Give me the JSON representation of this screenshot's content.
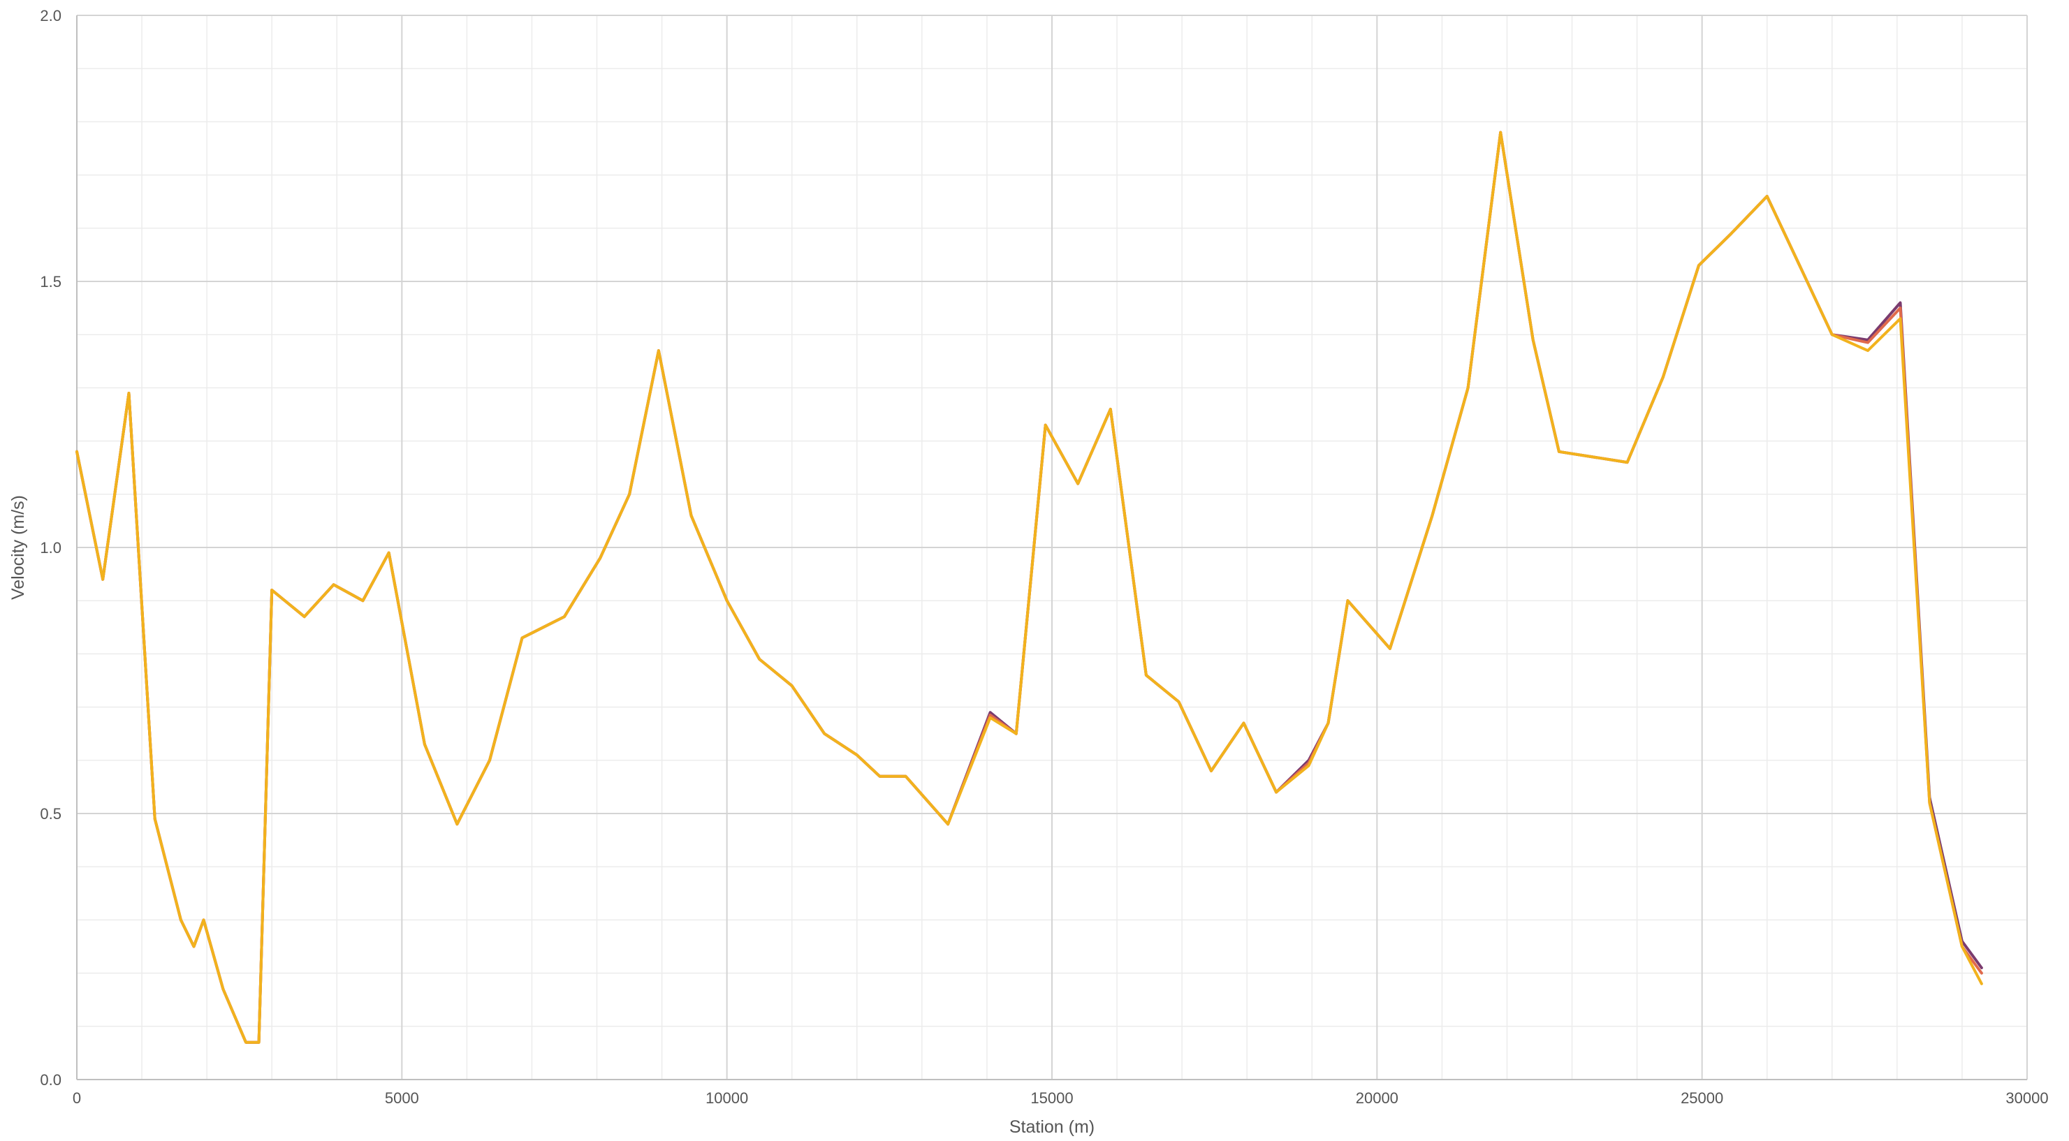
{
  "chart_data": {
    "type": "line",
    "title": "",
    "xlabel": "Station (m)",
    "ylabel": "Velocity (m/s)",
    "xlim": [
      0,
      30000
    ],
    "ylim": [
      0,
      2.0
    ],
    "x_ticks": [
      0,
      5000,
      10000,
      15000,
      20000,
      25000,
      30000
    ],
    "x_tick_labels": [
      "0",
      "5000",
      "10000",
      "15000",
      "20000",
      "25000",
      "30000"
    ],
    "y_ticks": [
      0,
      0.5,
      1.0,
      1.5,
      2.0
    ],
    "y_tick_labels": [
      "0.0",
      "0.5",
      "1.0",
      "1.5",
      "2.0"
    ],
    "x_minor_step": 1000,
    "y_minor_step": 0.1,
    "grid": true,
    "legend": "none",
    "colors": {
      "major_grid": "#d4d4d4",
      "minor_grid": "#ececec",
      "axis": "#bfbfbf"
    },
    "series": [
      {
        "color": "#7a3b6e",
        "x": [
          0,
          400,
          800,
          1200,
          1600,
          1800,
          1950,
          2250,
          2600,
          2800,
          3000,
          3500,
          3950,
          4400,
          4800,
          5350,
          5850,
          6350,
          6850,
          7500,
          8050,
          8500,
          8950,
          9450,
          10000,
          10500,
          11000,
          11500,
          12000,
          12350,
          12750,
          13400,
          14050,
          14450,
          14900,
          15400,
          15900,
          16450,
          16950,
          17450,
          17950,
          18450,
          18950,
          19250,
          19550,
          20200,
          20850,
          21400,
          21900,
          22400,
          22800,
          23850,
          24400,
          24950,
          25450,
          26000,
          26500,
          27000,
          27550,
          28050,
          28500,
          29000,
          29300
        ],
        "y": [
          1.18,
          0.94,
          1.29,
          0.49,
          0.3,
          0.25,
          0.3,
          0.17,
          0.07,
          0.07,
          0.92,
          0.87,
          0.93,
          0.9,
          0.99,
          0.63,
          0.48,
          0.6,
          0.83,
          0.87,
          0.98,
          1.1,
          1.37,
          1.06,
          0.9,
          0.79,
          0.74,
          0.65,
          0.61,
          0.57,
          0.57,
          0.48,
          0.69,
          0.65,
          1.23,
          1.12,
          1.26,
          0.76,
          0.71,
          0.58,
          0.67,
          0.54,
          0.6,
          0.67,
          0.9,
          0.81,
          1.06,
          1.3,
          1.78,
          1.39,
          1.18,
          1.16,
          1.32,
          1.53,
          1.59,
          1.66,
          1.53,
          1.4,
          1.39,
          1.46,
          0.53,
          0.26,
          0.21
        ]
      },
      {
        "color": "#e06a4c",
        "x": [
          0,
          400,
          800,
          1200,
          1600,
          1800,
          1950,
          2250,
          2600,
          2800,
          3000,
          3500,
          3950,
          4400,
          4800,
          5350,
          5850,
          6350,
          6850,
          7500,
          8050,
          8500,
          8950,
          9450,
          10000,
          10500,
          11000,
          11500,
          12000,
          12350,
          12750,
          13400,
          14050,
          14450,
          14900,
          15400,
          15900,
          16450,
          16950,
          17450,
          17950,
          18450,
          18950,
          19250,
          19550,
          20200,
          20850,
          21400,
          21900,
          22400,
          22800,
          23850,
          24400,
          24950,
          25450,
          26000,
          26500,
          27000,
          27550,
          28050,
          28500,
          29000,
          29300
        ],
        "y": [
          1.18,
          0.94,
          1.29,
          0.49,
          0.3,
          0.25,
          0.3,
          0.17,
          0.07,
          0.07,
          0.92,
          0.87,
          0.93,
          0.9,
          0.99,
          0.63,
          0.48,
          0.6,
          0.83,
          0.87,
          0.98,
          1.1,
          1.37,
          1.06,
          0.9,
          0.79,
          0.74,
          0.65,
          0.61,
          0.57,
          0.57,
          0.48,
          0.685,
          0.65,
          1.23,
          1.12,
          1.26,
          0.76,
          0.71,
          0.58,
          0.67,
          0.54,
          0.595,
          0.67,
          0.9,
          0.81,
          1.06,
          1.3,
          1.78,
          1.39,
          1.18,
          1.16,
          1.32,
          1.53,
          1.59,
          1.66,
          1.53,
          1.4,
          1.385,
          1.45,
          0.52,
          0.25,
          0.2
        ]
      },
      {
        "color": "#f2b21d",
        "x": [
          0,
          400,
          800,
          1200,
          1600,
          1800,
          1950,
          2250,
          2600,
          2800,
          3000,
          3500,
          3950,
          4400,
          4800,
          5350,
          5850,
          6350,
          6850,
          7500,
          8050,
          8500,
          8950,
          9450,
          10000,
          10500,
          11000,
          11500,
          12000,
          12350,
          12750,
          13400,
          14050,
          14450,
          14900,
          15400,
          15900,
          16450,
          16950,
          17450,
          17950,
          18450,
          18950,
          19250,
          19550,
          20200,
          20850,
          21400,
          21900,
          22400,
          22800,
          23850,
          24400,
          24950,
          25450,
          26000,
          26500,
          27000,
          27550,
          28050,
          28500,
          29000,
          29300
        ],
        "y": [
          1.18,
          0.94,
          1.29,
          0.49,
          0.3,
          0.25,
          0.3,
          0.17,
          0.07,
          0.07,
          0.92,
          0.87,
          0.93,
          0.9,
          0.99,
          0.63,
          0.48,
          0.6,
          0.83,
          0.87,
          0.98,
          1.1,
          1.37,
          1.06,
          0.9,
          0.79,
          0.74,
          0.65,
          0.61,
          0.57,
          0.57,
          0.48,
          0.68,
          0.65,
          1.23,
          1.12,
          1.26,
          0.76,
          0.71,
          0.58,
          0.67,
          0.54,
          0.59,
          0.67,
          0.9,
          0.81,
          1.06,
          1.3,
          1.78,
          1.39,
          1.18,
          1.16,
          1.32,
          1.53,
          1.59,
          1.66,
          1.53,
          1.4,
          1.37,
          1.43,
          0.52,
          0.25,
          0.18
        ]
      }
    ]
  }
}
